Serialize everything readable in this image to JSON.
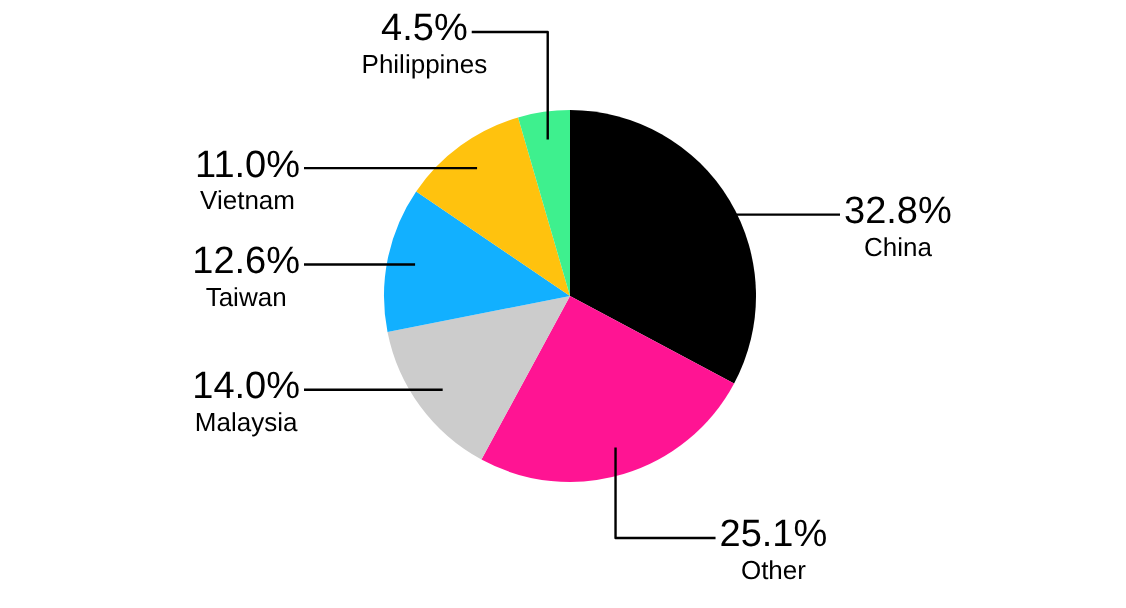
{
  "chart_data": {
    "type": "pie",
    "categories": [
      "China",
      "Other",
      "Malaysia",
      "Taiwan",
      "Vietnam",
      "Philippines"
    ],
    "values": [
      32.8,
      25.1,
      14.0,
      12.6,
      11.0,
      4.5
    ],
    "colors": [
      "#000000",
      "#ff1493",
      "#cccccc",
      "#12b0ff",
      "#ffc20e",
      "#3ef08e"
    ],
    "value_labels": [
      "32.8%",
      "25.1%",
      "14.0%",
      "12.6%",
      "11.0%",
      "4.5%"
    ],
    "legend": false
  }
}
